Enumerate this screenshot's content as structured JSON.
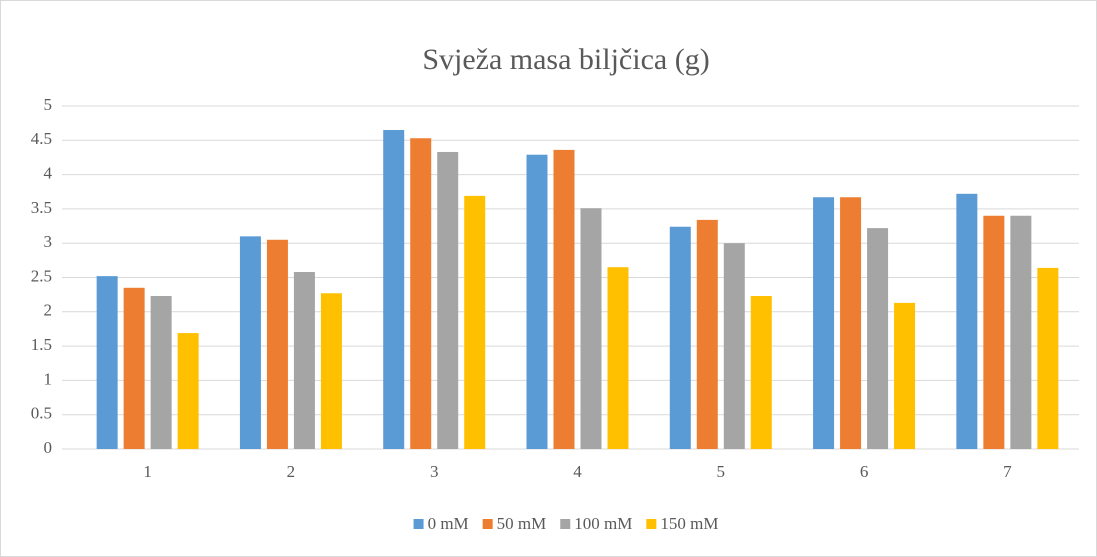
{
  "chart_data": {
    "type": "bar",
    "title": "Svježa masa biljčica (g)",
    "categories": [
      "1",
      "2",
      "3",
      "4",
      "5",
      "6",
      "7"
    ],
    "series": [
      {
        "name": "0 mM",
        "color": "#5b9bd5",
        "values": [
          2.52,
          3.1,
          4.65,
          4.29,
          3.24,
          3.67,
          3.72
        ]
      },
      {
        "name": "50 mM",
        "color": "#ed7d31",
        "values": [
          2.35,
          3.05,
          4.53,
          4.36,
          3.34,
          3.67,
          3.4
        ]
      },
      {
        "name": "100 mM",
        "color": "#a5a5a5",
        "values": [
          2.23,
          2.58,
          4.33,
          3.51,
          3.0,
          3.22,
          3.4
        ]
      },
      {
        "name": "150 mM",
        "color": "#ffc000",
        "values": [
          1.69,
          2.27,
          3.69,
          2.65,
          2.23,
          2.13,
          2.64
        ]
      }
    ],
    "ylim": [
      0,
      5
    ],
    "yticks": [
      0,
      0.5,
      1,
      1.5,
      2,
      2.5,
      3,
      3.5,
      4,
      4.5,
      5
    ],
    "grid": true,
    "legend": "bottom"
  }
}
